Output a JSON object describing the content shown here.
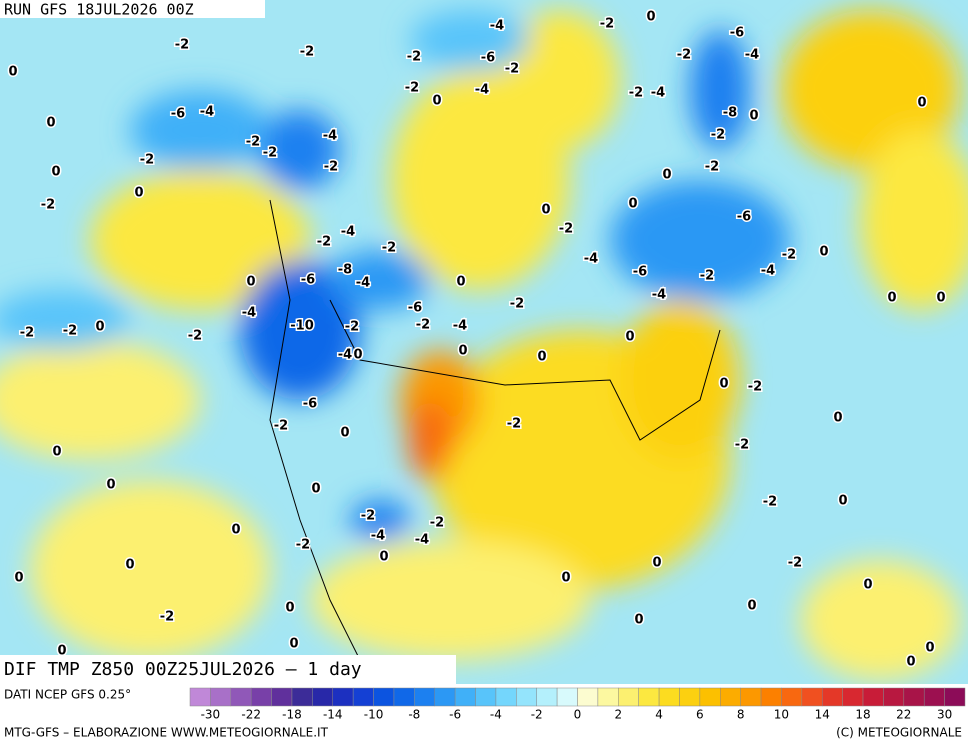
{
  "header": {
    "run": "RUN GFS 18JUL2026 00Z"
  },
  "map": {
    "title": "DIF TMP Z850 00Z25JUL2026 – 1 day",
    "contour_labels": [
      "-2",
      "-2",
      "0",
      "-6",
      "-4",
      "0",
      "-2",
      "0",
      "0",
      "-2",
      "-2",
      "-2",
      "-4",
      "-2",
      "-2",
      "-4",
      "-6",
      "-2",
      "-2",
      "0",
      "-4",
      "-2",
      "0",
      "-6",
      "-4",
      "-2",
      "-2",
      "-4",
      "-8",
      "0",
      "0",
      "-2",
      "-2",
      "0",
      "0",
      "-2",
      "0",
      "-6",
      "-4",
      "-6",
      "-4",
      "-2",
      "-2",
      "-4",
      "0",
      "0",
      "0",
      "-2",
      "-4",
      "-2",
      "-8",
      "-4",
      "0",
      "-6",
      "-4",
      "-10",
      "-2",
      "-2",
      "-4",
      "-6",
      "0",
      "-2",
      "0",
      "0",
      "0",
      "-2",
      "-2",
      "0",
      "-2",
      "-4",
      "0",
      "-6",
      "-2",
      "0",
      "-2",
      "0",
      "-2",
      "0",
      "-2",
      "0",
      "0",
      "0",
      "-2",
      "-4",
      "-2",
      "-4",
      "-2",
      "0",
      "0",
      "-2",
      "0",
      "0",
      "0",
      "0",
      "0",
      "-2",
      "0",
      "0",
      "0",
      "-2",
      "0",
      "0",
      "0",
      "0",
      "0"
    ]
  },
  "colorbar": {
    "source": "DATI NCEP GFS 0.25°",
    "colors": [
      "#c088d8",
      "#a870c8",
      "#9058b8",
      "#7840a8",
      "#60309c",
      "#3c2c98",
      "#2828a8",
      "#1c30c0",
      "#1440d4",
      "#0c54e0",
      "#1068e8",
      "#1c80f0",
      "#2c98f4",
      "#40b0f8",
      "#58c4fa",
      "#74d6fc",
      "#94e4fc",
      "#b4f0fc",
      "#d8fafc",
      "#fcfcd0",
      "#fcf8a0",
      "#fcf070",
      "#fce840",
      "#fcdc20",
      "#fcd010",
      "#fcc000",
      "#fcac00",
      "#fc9800",
      "#fc8000",
      "#f86810",
      "#f05020",
      "#e43828",
      "#d82830",
      "#c81c38",
      "#b81840",
      "#a81448",
      "#9c1050",
      "#8c0c58"
    ],
    "labels": [
      "-30",
      "-22",
      "-18",
      "-14",
      "-10",
      "-8",
      "-6",
      "-4",
      "-2",
      "0",
      "2",
      "4",
      "6",
      "8",
      "10",
      "14",
      "18",
      "22",
      "30"
    ]
  },
  "footer": {
    "left": "MTG-GFS – ELABORAZIONE WWW.METEOGIORNALE.IT",
    "right": "(C) METEOGIORNALE"
  }
}
